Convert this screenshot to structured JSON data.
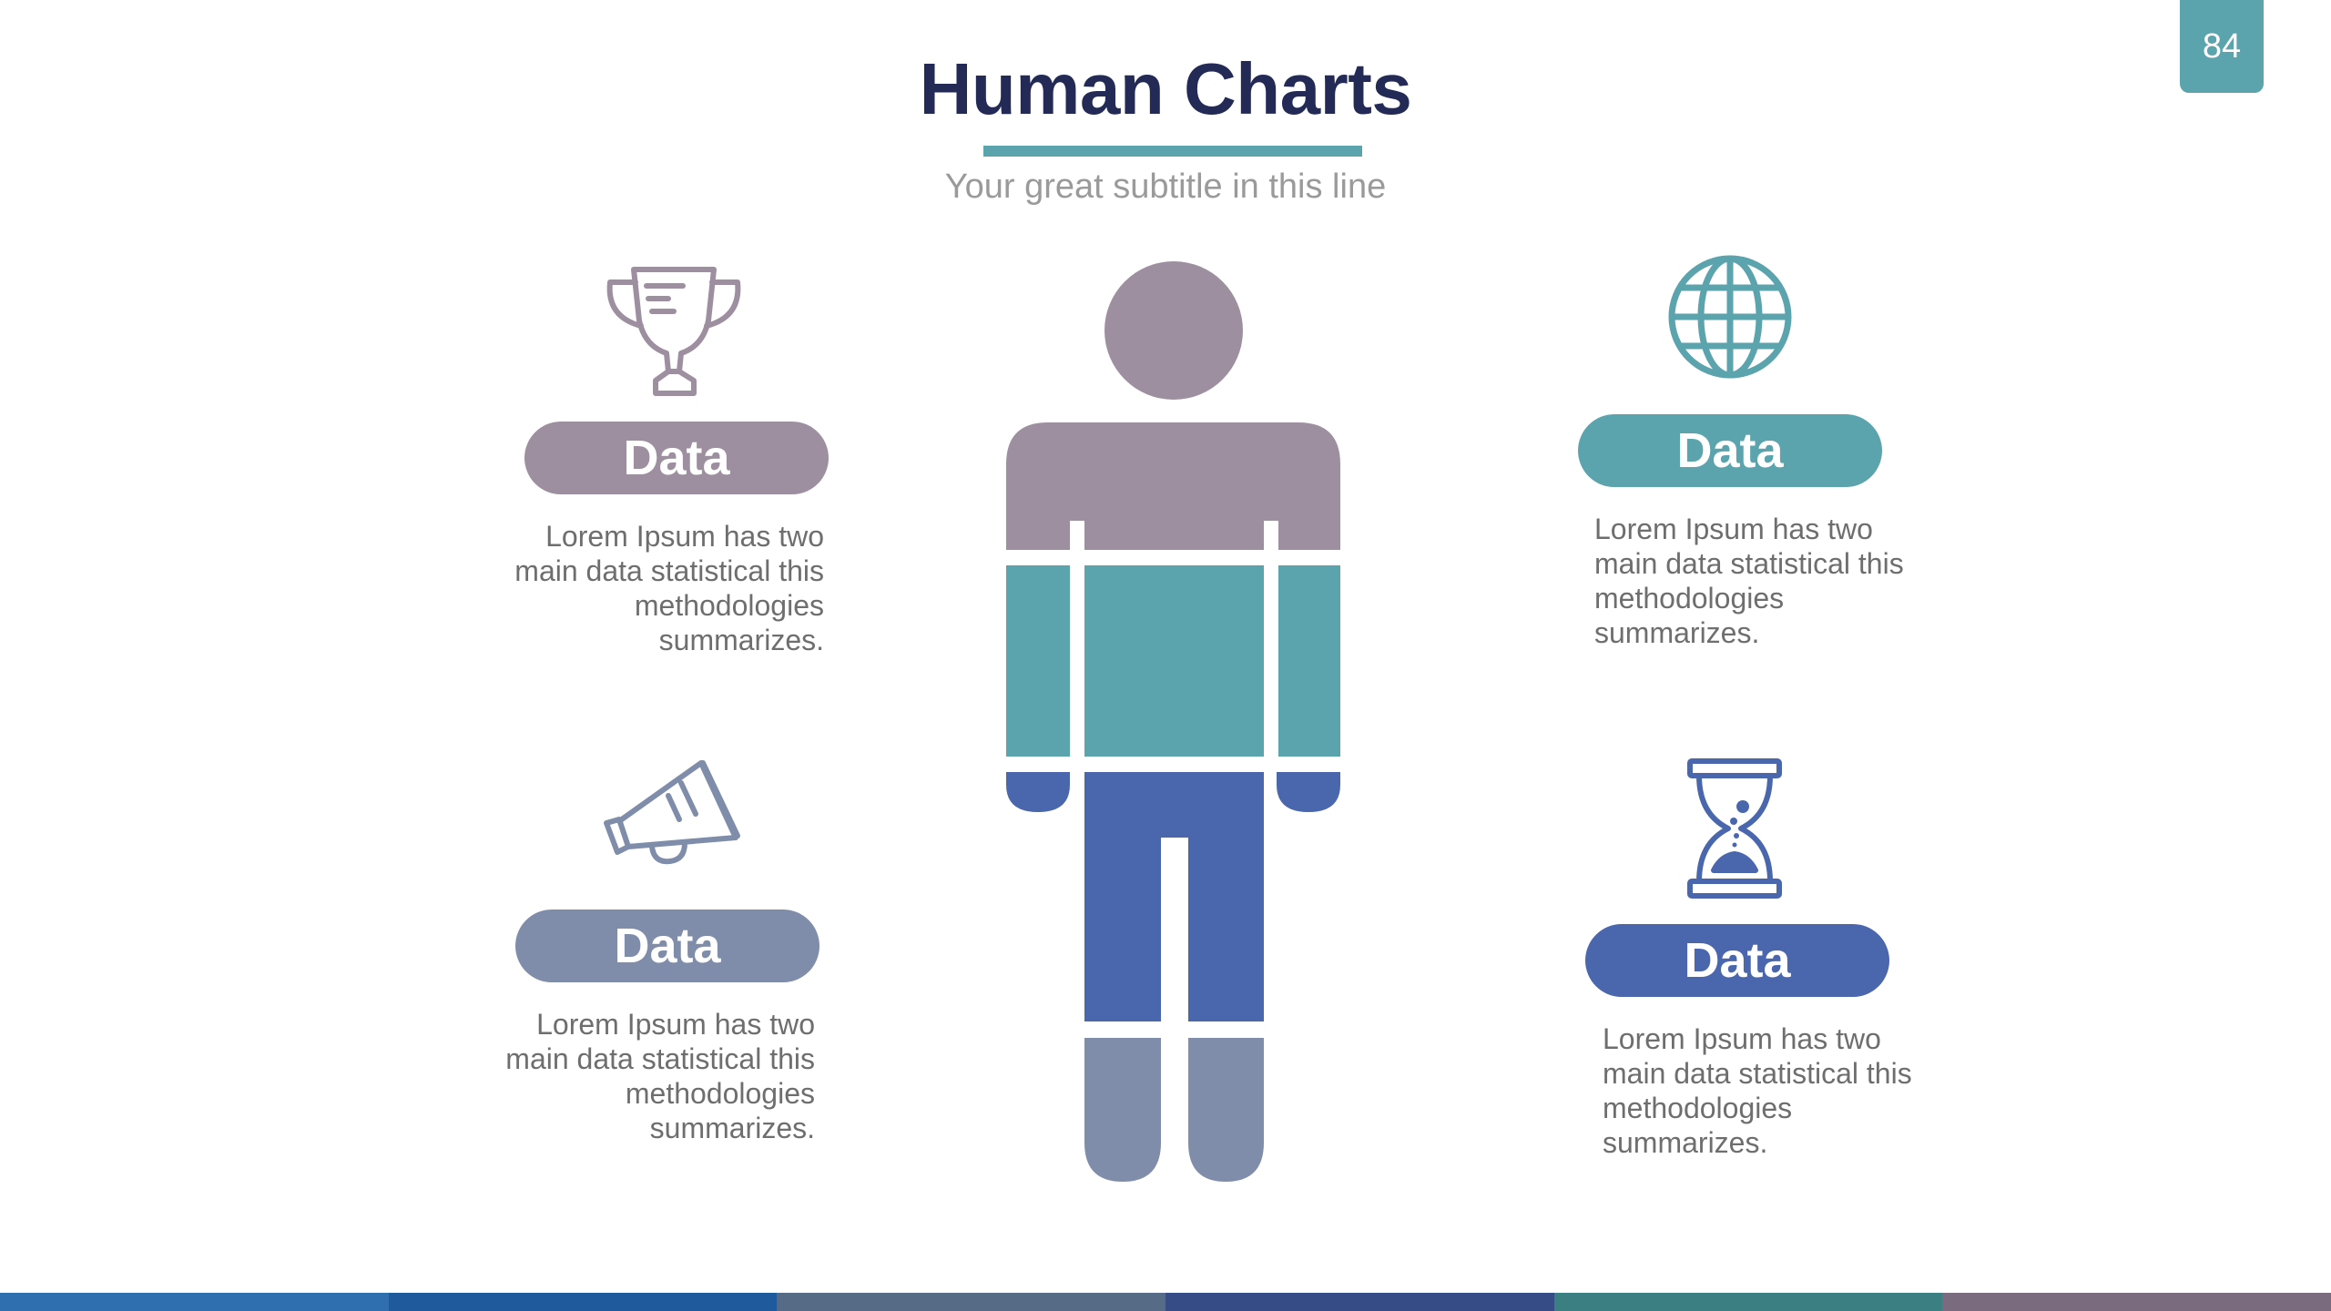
{
  "slide": {
    "number": "84",
    "title": "Human Charts",
    "subtitle": "Your great subtitle in this line"
  },
  "blocks": [
    {
      "id": "top-left",
      "icon": "trophy-icon",
      "label": "Data",
      "color": "#9e8fa0",
      "text": "Lorem Ipsum has two main data statistical this methodologies summarizes."
    },
    {
      "id": "bottom-left",
      "icon": "megaphone-icon",
      "label": "Data",
      "color": "#7f8daa",
      "text": "Lorem Ipsum has two main data statistical this methodologies summarizes."
    },
    {
      "id": "top-right",
      "icon": "globe-icon",
      "label": "Data",
      "color": "#5ba3ad",
      "text": "Lorem Ipsum has two main data statistical this methodologies summarizes."
    },
    {
      "id": "bottom-right",
      "icon": "hourglass-icon",
      "label": "Data",
      "color": "#4a67ae",
      "text": "Lorem Ipsum has two main data statistical this methodologies summarizes."
    }
  ],
  "human_figure": {
    "segments": [
      {
        "name": "head-and-shoulders",
        "color": "#9e8fa0"
      },
      {
        "name": "torso",
        "color": "#5ba3ad"
      },
      {
        "name": "hips-and-hands",
        "color": "#4a67ae"
      },
      {
        "name": "lower-legs",
        "color": "#7f8daa"
      }
    ]
  },
  "bottom_bar_colors": [
    "#2f6fb0",
    "#1f5b9c",
    "#566c86",
    "#354c86",
    "#3c7f82",
    "#7a6b7e"
  ]
}
